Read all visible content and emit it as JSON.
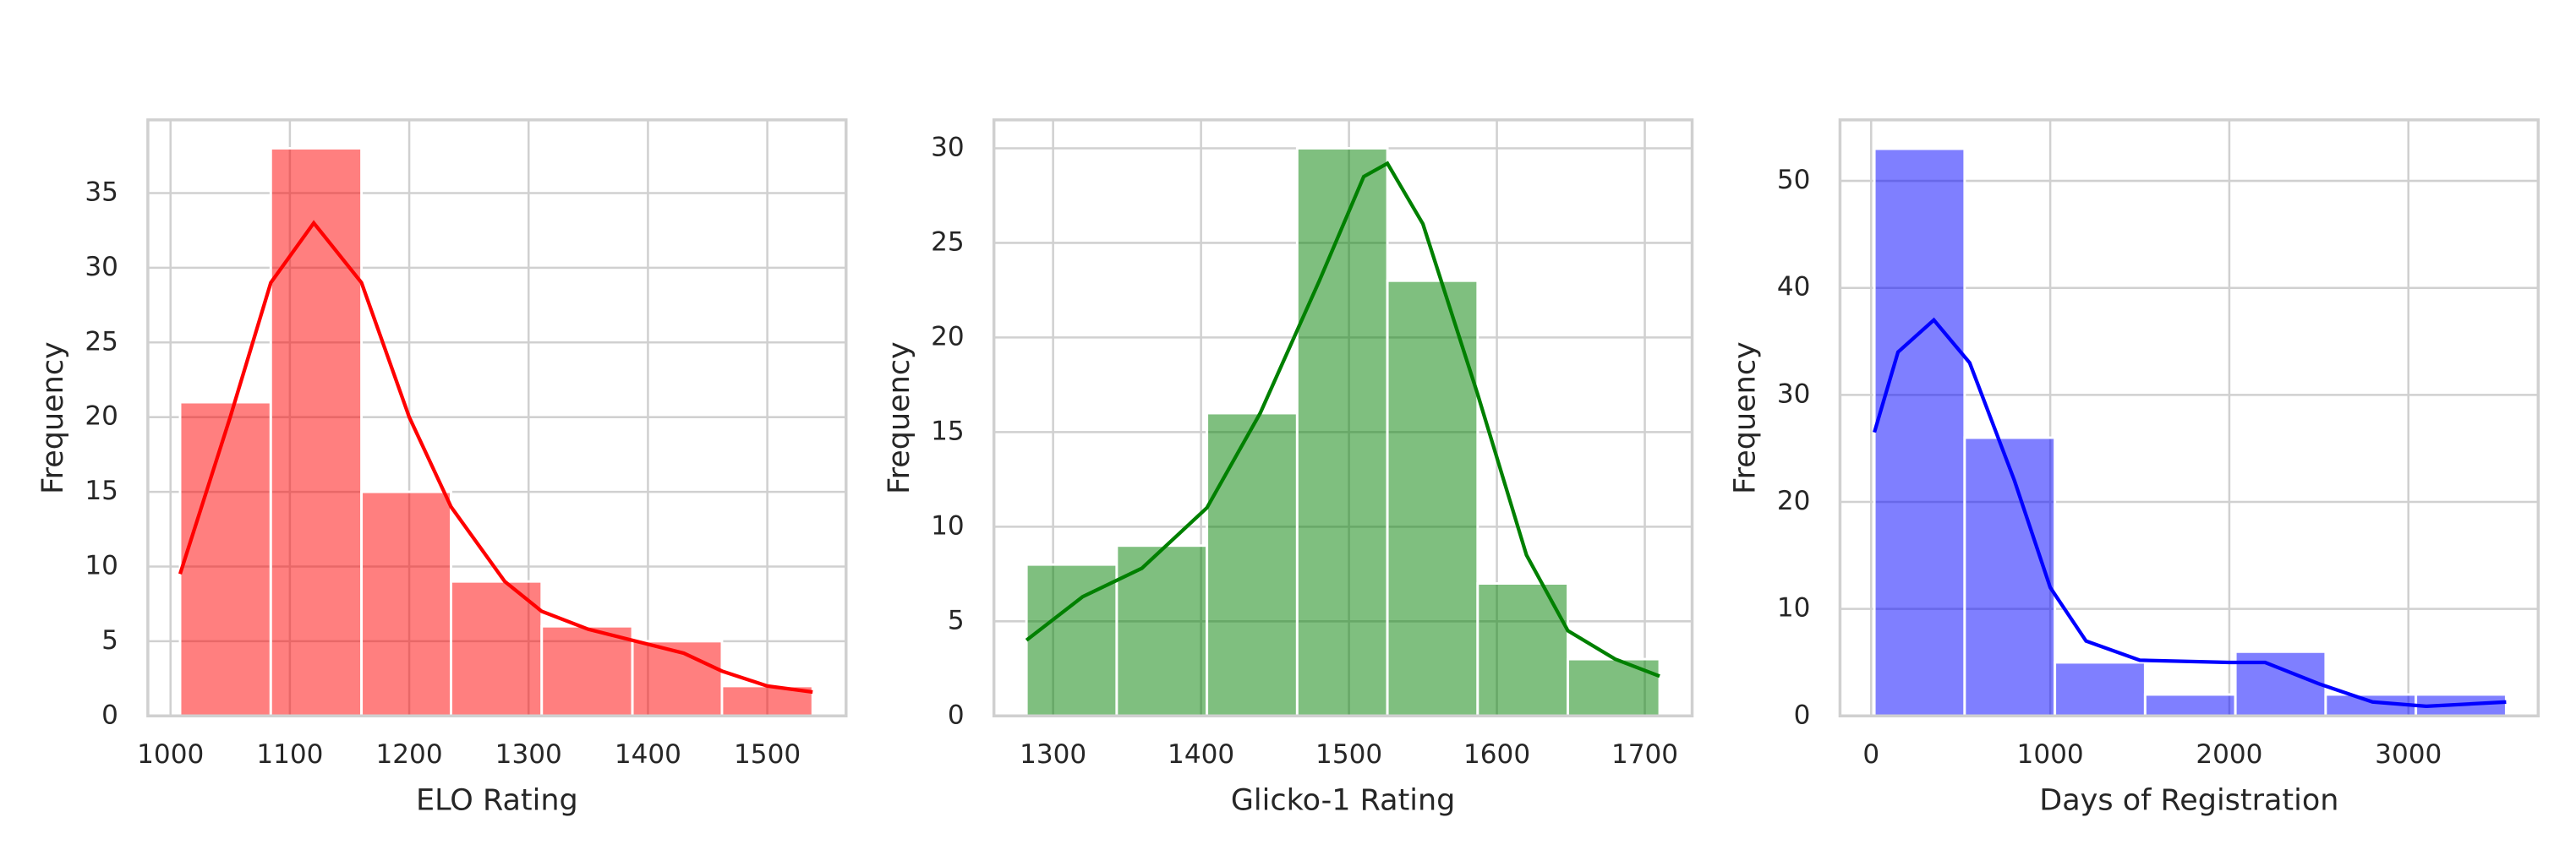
{
  "chart_data": [
    {
      "type": "histogram",
      "xlabel": "ELO Rating",
      "ylabel": "Frequency",
      "color": "#ff0000",
      "grid": true,
      "bins": [
        1008,
        1084,
        1160,
        1235,
        1311,
        1387,
        1462,
        1538
      ],
      "values": [
        21,
        38,
        15,
        9,
        6,
        5,
        2
      ],
      "xlim": [
        981,
        1566
      ],
      "ylim": [
        0,
        39.9
      ],
      "xticks": [
        1000,
        1100,
        1200,
        1300,
        1400,
        1500
      ],
      "yticks": [
        0,
        5,
        10,
        15,
        20,
        25,
        30,
        35
      ],
      "kde": {
        "x": [
          1008,
          1050,
          1084,
          1120,
          1160,
          1200,
          1235,
          1280,
          1311,
          1350,
          1400,
          1430,
          1462,
          1500,
          1538
        ],
        "values": [
          9.5,
          20,
          29,
          33,
          29,
          20,
          14,
          9,
          7,
          5.8,
          4.8,
          4.2,
          3,
          2,
          1.6
        ]
      }
    },
    {
      "type": "histogram",
      "xlabel": "Glicko-1 Rating",
      "ylabel": "Frequency",
      "color": "#008000",
      "grid": true,
      "bins": [
        1282,
        1343,
        1404,
        1465,
        1526,
        1587,
        1648,
        1710
      ],
      "values": [
        8,
        9,
        16,
        30,
        23,
        7,
        3
      ],
      "xlim": [
        1260,
        1732
      ],
      "ylim": [
        0,
        31.5
      ],
      "xticks": [
        1300,
        1400,
        1500,
        1600,
        1700
      ],
      "yticks": [
        0,
        5,
        10,
        15,
        20,
        25,
        30
      ],
      "kde": {
        "x": [
          1282,
          1320,
          1360,
          1404,
          1440,
          1480,
          1510,
          1526,
          1550,
          1587,
          1620,
          1648,
          1680,
          1710
        ],
        "values": [
          4,
          6.3,
          7.8,
          11,
          16,
          23,
          28.5,
          29.2,
          26,
          17,
          8.5,
          4.5,
          3,
          2.1
        ]
      }
    },
    {
      "type": "histogram",
      "xlabel": "Days of Registration",
      "ylabel": "Frequency",
      "color": "#0000ff",
      "grid": true,
      "bins": [
        18,
        522,
        1026,
        1530,
        2034,
        2538,
        3042,
        3546
      ],
      "values": [
        53,
        26,
        5,
        2,
        6,
        2,
        2
      ],
      "xlim": [
        -174,
        3725
      ],
      "ylim": [
        0,
        55.7
      ],
      "xticks": [
        0,
        1000,
        2000,
        3000
      ],
      "yticks": [
        0,
        10,
        20,
        30,
        40,
        50
      ],
      "kde": {
        "x": [
          18,
          150,
          350,
          550,
          800,
          1000,
          1200,
          1500,
          2000,
          2200,
          2500,
          2800,
          3100,
          3546
        ],
        "values": [
          26.5,
          34,
          37,
          33,
          22,
          12,
          7,
          5.2,
          5,
          5,
          3,
          1.3,
          0.9,
          1.3
        ]
      }
    }
  ]
}
